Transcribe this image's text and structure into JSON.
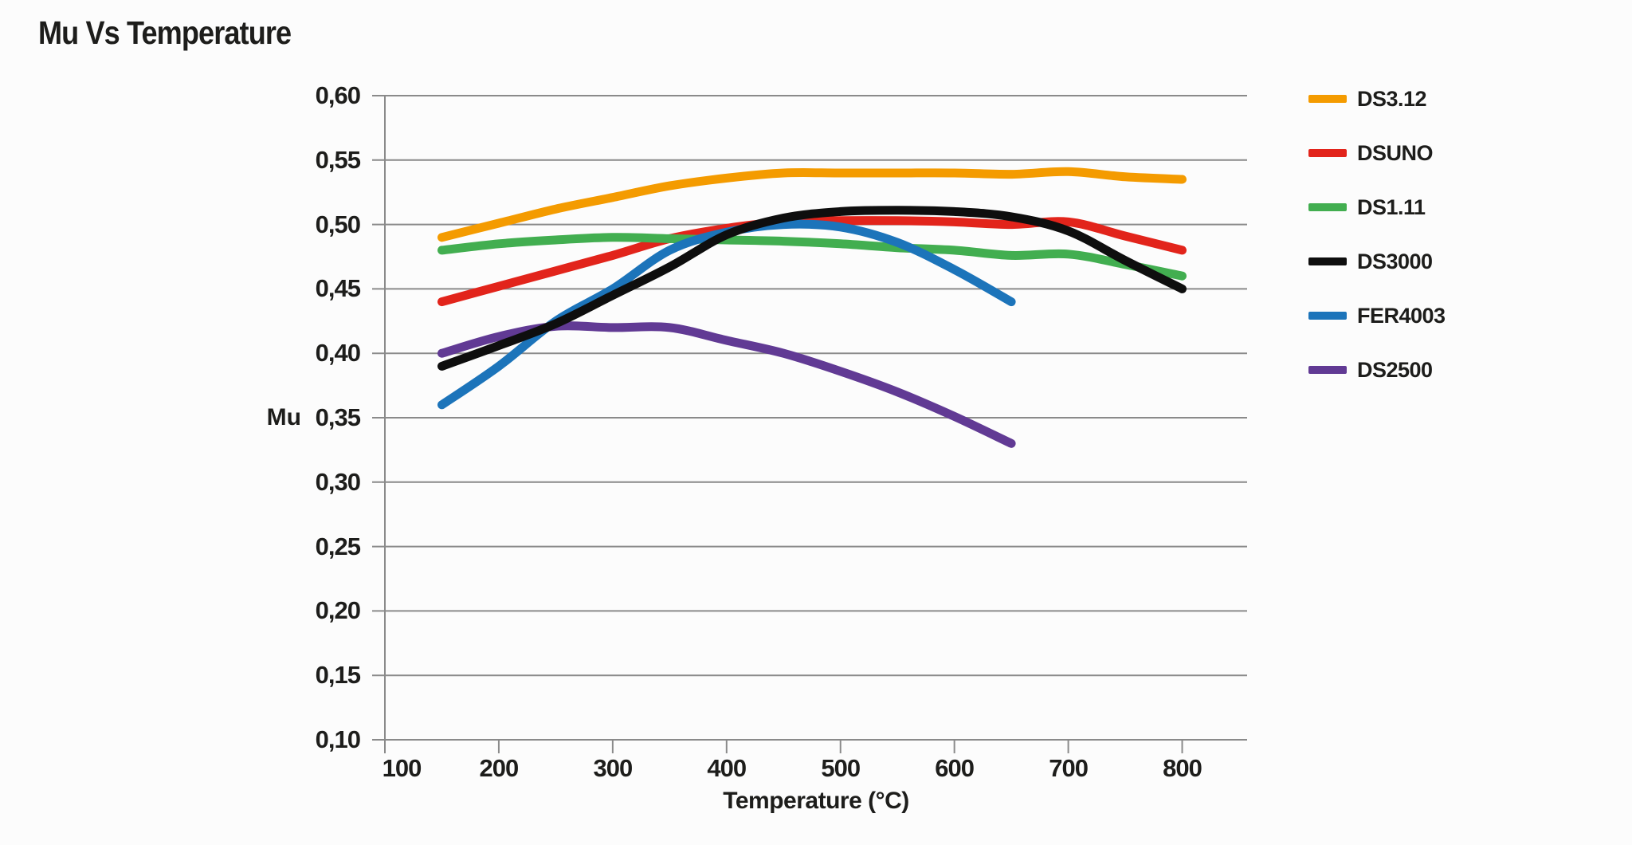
{
  "page": {
    "background": "#fcfcfc",
    "text_color": "#1d1d1b"
  },
  "chart_data": {
    "type": "line",
    "title": "Mu Vs Temperature",
    "xlabel": "Temperature (°C)",
    "ylabel": "Mu",
    "xlim": [
      100,
      857
    ],
    "ylim": [
      0.1,
      0.6
    ],
    "x_ticks": [
      100,
      200,
      300,
      400,
      500,
      600,
      700,
      800
    ],
    "y_ticks": [
      0.6,
      0.55,
      0.5,
      0.45,
      0.4,
      0.35,
      0.3,
      0.25,
      0.2,
      0.15,
      0.1
    ],
    "y_tick_labels": [
      "0,60",
      "0,55",
      "0,50",
      "0,45",
      "0,40",
      "0,35",
      "0,30",
      "0,25",
      "0,20",
      "0,15",
      "0,10"
    ],
    "grid": "horizontal",
    "grid_color": "#8a8a8a",
    "axis_color": "#8a8a8a",
    "legend_position": "right",
    "line_width": 11,
    "series": [
      {
        "name": "DS3.12",
        "color": "#F49B00",
        "x": [
          150,
          200,
          250,
          300,
          350,
          400,
          450,
          500,
          550,
          600,
          650,
          700,
          750,
          800
        ],
        "y": [
          0.49,
          0.501,
          0.512,
          0.521,
          0.53,
          0.536,
          0.54,
          0.54,
          0.54,
          0.54,
          0.539,
          0.541,
          0.537,
          0.535
        ]
      },
      {
        "name": "DSUNO",
        "color": "#E2241B",
        "x": [
          150,
          200,
          250,
          300,
          350,
          400,
          450,
          500,
          550,
          600,
          650,
          700,
          750,
          800
        ],
        "y": [
          0.44,
          0.452,
          0.464,
          0.476,
          0.489,
          0.497,
          0.502,
          0.503,
          0.503,
          0.502,
          0.5,
          0.502,
          0.491,
          0.48
        ]
      },
      {
        "name": "DS1.11",
        "color": "#42AE50",
        "x": [
          150,
          200,
          250,
          300,
          350,
          400,
          450,
          500,
          550,
          600,
          650,
          700,
          750,
          800
        ],
        "y": [
          0.48,
          0.485,
          0.488,
          0.49,
          0.489,
          0.488,
          0.487,
          0.485,
          0.482,
          0.48,
          0.476,
          0.477,
          0.469,
          0.46
        ]
      },
      {
        "name": "DS3000",
        "color": "#0E0E0E",
        "x": [
          150,
          200,
          250,
          300,
          350,
          400,
          450,
          500,
          550,
          600,
          650,
          700,
          750,
          800
        ],
        "y": [
          0.39,
          0.406,
          0.423,
          0.445,
          0.467,
          0.492,
          0.505,
          0.51,
          0.511,
          0.51,
          0.506,
          0.495,
          0.472,
          0.45
        ]
      },
      {
        "name": "FER4003",
        "color": "#1C74BA",
        "x": [
          150,
          200,
          250,
          300,
          350,
          400,
          450,
          500,
          550,
          600,
          650
        ],
        "y": [
          0.36,
          0.39,
          0.425,
          0.45,
          0.48,
          0.494,
          0.5,
          0.498,
          0.486,
          0.465,
          0.44
        ]
      },
      {
        "name": "DS2500",
        "color": "#613A94",
        "x": [
          150,
          200,
          250,
          300,
          350,
          400,
          450,
          500,
          550,
          600,
          650
        ],
        "y": [
          0.4,
          0.413,
          0.421,
          0.42,
          0.42,
          0.41,
          0.4,
          0.386,
          0.37,
          0.351,
          0.33
        ]
      }
    ]
  }
}
